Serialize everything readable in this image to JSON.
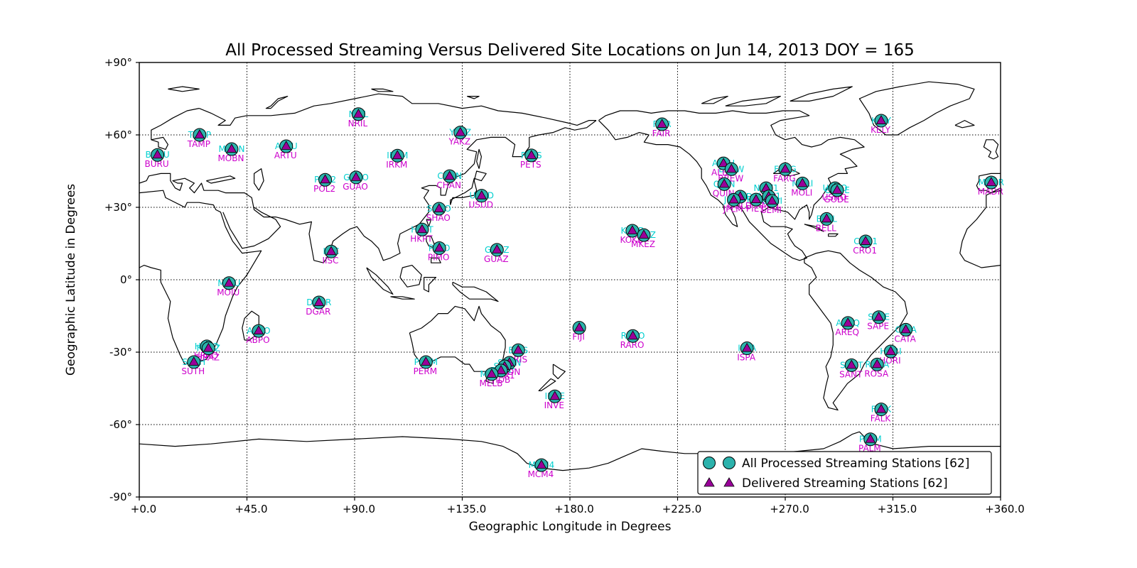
{
  "title": "All Processed Streaming Versus Delivered Site Locations on Jun 14, 2013 DOY = 165",
  "axes": {
    "xlabel": "Geographic Longitude in Degrees",
    "ylabel": "Geographic Latitude in Degrees",
    "x_ticks": [
      {
        "v": 0,
        "label": "+0.0"
      },
      {
        "v": 45,
        "label": "+45.0"
      },
      {
        "v": 90,
        "label": "+90.0"
      },
      {
        "v": 135,
        "label": "+135.0"
      },
      {
        "v": 180,
        "label": "+180.0"
      },
      {
        "v": 225,
        "label": "+225.0"
      },
      {
        "v": 270,
        "label": "+270.0"
      },
      {
        "v": 315,
        "label": "+315.0"
      },
      {
        "v": 360,
        "label": "+360.0"
      }
    ],
    "y_ticks": [
      {
        "v": 90,
        "label": "+90°"
      },
      {
        "v": 60,
        "label": "+60°"
      },
      {
        "v": 30,
        "label": "+30°"
      },
      {
        "v": 0,
        "label": "0°"
      },
      {
        "v": -30,
        "label": "-30°"
      },
      {
        "v": -60,
        "label": "-60°"
      },
      {
        "v": -90,
        "label": "-90°"
      }
    ]
  },
  "legend": {
    "items": [
      {
        "label": "All Processed Streaming Stations [62]",
        "marker": "circle",
        "color": "#2cb2ac"
      },
      {
        "label": "Delivered Streaming Stations [62]",
        "marker": "triangle",
        "color": "#990099"
      }
    ]
  },
  "colors": {
    "circle_fill": "#2cb2ac",
    "triangle_fill": "#990099",
    "cyan_label": "#00cfcf",
    "magenta_label": "#cc00cc",
    "edge": "#000000"
  },
  "chart_data": {
    "type": "scatter",
    "subtype": "geographic-station-map",
    "title": "All Processed Streaming Versus Delivered Site Locations on Jun 14, 2013 DOY = 165",
    "xlabel": "Geographic Longitude in Degrees",
    "ylabel": "Geographic Latitude in Degrees",
    "xlim": [
      0,
      360
    ],
    "ylim": [
      -90,
      90
    ],
    "grid": "dotted",
    "legend_position": "lower right",
    "series": [
      {
        "name": "All Processed Streaming Stations",
        "count": 62,
        "marker": "circle",
        "color": "#2cb2ac"
      },
      {
        "name": "Delivered Streaming Stations",
        "count": 62,
        "marker": "triangle",
        "color": "#990099"
      }
    ],
    "stations": [
      {
        "id": "BURU",
        "lon": 7.6,
        "lat": 51.7
      },
      {
        "id": "TAMP",
        "lon": 25.2,
        "lat": 60.0
      },
      {
        "id": "MOBN",
        "lon": 38.6,
        "lat": 54.1
      },
      {
        "id": "ARTU",
        "lon": 61.4,
        "lat": 55.3
      },
      {
        "id": "POL2",
        "lon": 77.7,
        "lat": 41.4
      },
      {
        "id": "GUAO",
        "lon": 90.6,
        "lat": 42.4
      },
      {
        "id": "NRIL",
        "lon": 91.6,
        "lat": 68.6
      },
      {
        "id": "IRKM",
        "lon": 107.9,
        "lat": 51.4
      },
      {
        "id": "YAKZ",
        "lon": 134.2,
        "lat": 61.0
      },
      {
        "id": "PETS",
        "lon": 163.9,
        "lat": 51.5
      },
      {
        "id": "CHAN",
        "lon": 129.7,
        "lat": 42.9
      },
      {
        "id": "USUD",
        "lon": 143.1,
        "lat": 34.8
      },
      {
        "id": "SHAO",
        "lon": 125.3,
        "lat": 29.4
      },
      {
        "id": "HKPT",
        "lon": 118.2,
        "lat": 20.8
      },
      {
        "id": "PIMO",
        "lon": 125.4,
        "lat": 13.1
      },
      {
        "id": "GUAZ",
        "lon": 149.5,
        "lat": 12.4
      },
      {
        "id": "IISC",
        "lon": 80.2,
        "lat": 11.7
      },
      {
        "id": "DGAR",
        "lon": 75.1,
        "lat": -9.4
      },
      {
        "id": "MOIU",
        "lon": 37.5,
        "lat": -1.4
      },
      {
        "id": "ABPO",
        "lon": 49.9,
        "lat": -21.2
      },
      {
        "id": "HRAO",
        "lon": 28.2,
        "lat": -27.6
      },
      {
        "id": "HRAZ",
        "lon": 28.9,
        "lat": -28.4
      },
      {
        "id": "SUTH",
        "lon": 22.8,
        "lat": -34.1
      },
      {
        "id": "PERM",
        "lon": 119.8,
        "lat": -34.1
      },
      {
        "id": "BRIS",
        "lon": 158.4,
        "lat": -29.2
      },
      {
        "id": "SYDN",
        "lon": 154.7,
        "lat": -34.4
      },
      {
        "id": "STR1",
        "lon": 152.7,
        "lat": -35.9
      },
      {
        "id": "TIDB",
        "lon": 151.2,
        "lat": -37.6
      },
      {
        "id": "MELB",
        "lon": 147.3,
        "lat": -39.1
      },
      {
        "id": "INVE",
        "lon": 173.7,
        "lat": -48.3
      },
      {
        "id": "FIJI",
        "lon": 183.9,
        "lat": -19.9
      },
      {
        "id": "MCM4",
        "lon": 168.1,
        "lat": -76.8
      },
      {
        "id": "RARO",
        "lon": 206.3,
        "lat": -23.3
      },
      {
        "id": "KOKB",
        "lon": 206.1,
        "lat": 20.3
      },
      {
        "id": "MKEZ",
        "lon": 210.9,
        "lat": 18.5
      },
      {
        "id": "ISPA",
        "lon": 254.0,
        "lat": -28.4
      },
      {
        "id": "FAIR",
        "lon": 218.5,
        "lat": 64.4
      },
      {
        "id": "ALBH",
        "lon": 244.2,
        "lat": 48.2
      },
      {
        "id": "BREW",
        "lon": 247.5,
        "lat": 45.8
      },
      {
        "id": "QUIN",
        "lon": 244.5,
        "lat": 39.6
      },
      {
        "id": "GOLD",
        "lon": 251.2,
        "lat": 34.4
      },
      {
        "id": "JPLM",
        "lon": 248.5,
        "lat": 33.1
      },
      {
        "id": "PIE1",
        "lon": 257.8,
        "lat": 33.2
      },
      {
        "id": "NIST1",
        "lon": 262.0,
        "lat": 37.9
      },
      {
        "id": "AMC1",
        "lon": 263.1,
        "lat": 34.5
      },
      {
        "id": "SEMI",
        "lon": 264.5,
        "lat": 32.6
      },
      {
        "id": "FARG",
        "lon": 270.0,
        "lat": 45.8
      },
      {
        "id": "MOLI",
        "lon": 277.2,
        "lat": 39.9
      },
      {
        "id": "USNO",
        "lon": 290.8,
        "lat": 37.9
      },
      {
        "id": "GODE",
        "lon": 291.7,
        "lat": 37.1
      },
      {
        "id": "BELL",
        "lon": 287.3,
        "lat": 25.2
      },
      {
        "id": "CRO1",
        "lon": 303.6,
        "lat": 15.9
      },
      {
        "id": "KELY",
        "lon": 310.1,
        "lat": 65.9
      },
      {
        "id": "AREQ",
        "lon": 296.2,
        "lat": -17.9
      },
      {
        "id": "SAPE",
        "lon": 309.1,
        "lat": -15.5
      },
      {
        "id": "CATA",
        "lon": 320.4,
        "lat": -20.7
      },
      {
        "id": "HORI",
        "lon": 314.1,
        "lat": -29.7
      },
      {
        "id": "SANT",
        "lon": 297.7,
        "lat": -35.4
      },
      {
        "id": "ROSA",
        "lon": 308.4,
        "lat": -35.1
      },
      {
        "id": "FALK",
        "lon": 310.1,
        "lat": -53.7
      },
      {
        "id": "PALM",
        "lon": 305.6,
        "lat": -66.1
      },
      {
        "id": "MADR",
        "lon": 356.1,
        "lat": 40.3
      }
    ]
  }
}
